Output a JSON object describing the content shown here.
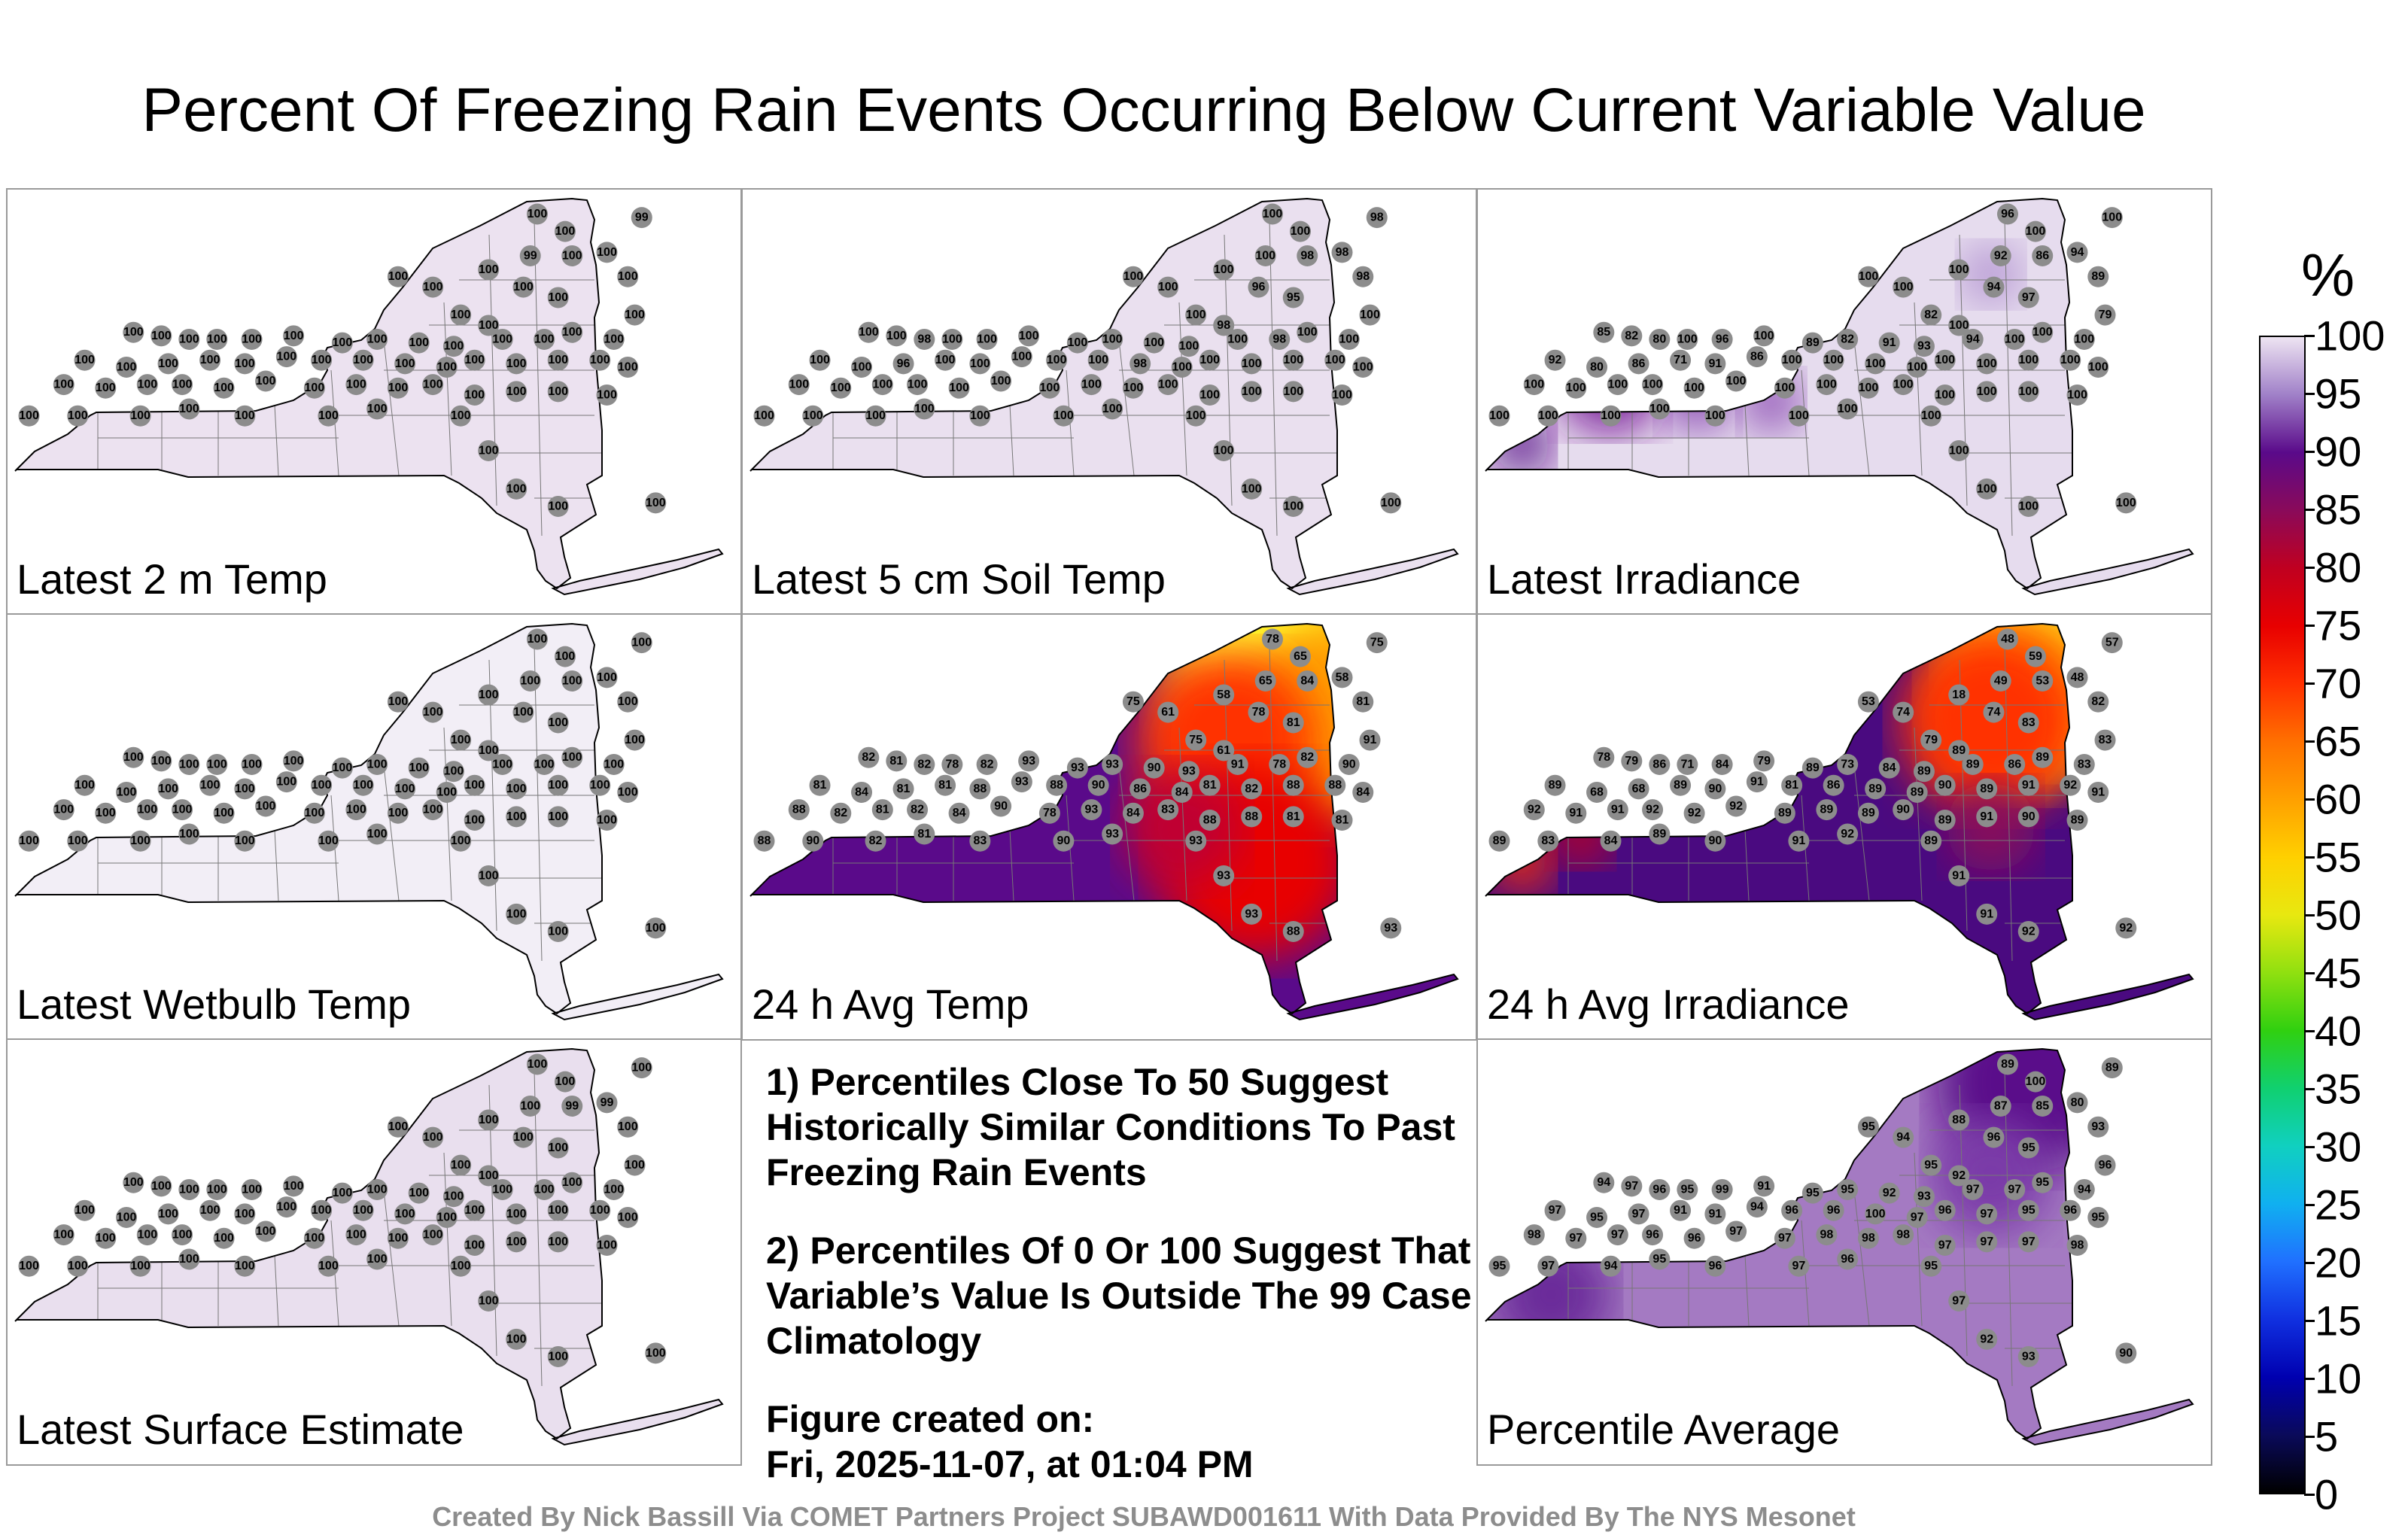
{
  "title": "Percent Of Freezing Rain Events Occurring Below Current Variable Value",
  "panels": [
    {
      "label": "Latest 2 m Temp",
      "fill": "#ece2f0",
      "stations": [
        100,
        100,
        99,
        99,
        100,
        100,
        100,
        100,
        100,
        100,
        100,
        100,
        100,
        100,
        100,
        100,
        100,
        100,
        100,
        100,
        100,
        100,
        100,
        100,
        100,
        100,
        100,
        100,
        100,
        100,
        100,
        100,
        100,
        100,
        100,
        100,
        100,
        100,
        100,
        100,
        100,
        100,
        100,
        100,
        100,
        100,
        100,
        100,
        100,
        100,
        100,
        100,
        100,
        100,
        100,
        100,
        100,
        100,
        100,
        100,
        100,
        100,
        100,
        100,
        100,
        100,
        100,
        100,
        100,
        100
      ]
    },
    {
      "label": "Latest 5 cm Soil Temp",
      "fill": "#eae0ef",
      "stations": [
        100,
        100,
        98,
        100,
        98,
        98,
        100,
        98,
        100,
        100,
        96,
        95,
        100,
        98,
        100,
        100,
        98,
        100,
        100,
        100,
        100,
        100,
        100,
        100,
        100,
        98,
        100,
        100,
        100,
        100,
        100,
        96,
        100,
        100,
        100,
        100,
        100,
        98,
        100,
        100,
        100,
        100,
        100,
        100,
        100,
        100,
        100,
        100,
        100,
        100,
        100,
        100,
        100,
        100,
        100,
        100,
        100,
        100,
        100,
        100,
        100,
        100,
        100,
        100,
        100,
        100,
        100,
        100,
        100,
        100
      ]
    },
    {
      "label": "Latest Irradiance",
      "fill": "#e6dcee",
      "stations": [
        96,
        100,
        100,
        92,
        86,
        94,
        100,
        89,
        100,
        100,
        94,
        97,
        82,
        100,
        85,
        82,
        80,
        100,
        96,
        100,
        89,
        82,
        91,
        93,
        94,
        100,
        100,
        100,
        79,
        92,
        80,
        86,
        71,
        91,
        86,
        100,
        100,
        100,
        100,
        100,
        100,
        100,
        100,
        100,
        100,
        100,
        100,
        100,
        100,
        100,
        100,
        100,
        100,
        100,
        100,
        100,
        100,
        100,
        100,
        100,
        100,
        100,
        100,
        100,
        100,
        100,
        100,
        100,
        100,
        100
      ]
    },
    {
      "label": "Latest Wetbulb Temp",
      "fill": "#f2eef6",
      "stations": [
        100,
        100,
        100,
        100,
        100,
        100,
        100,
        100,
        100,
        100,
        100,
        100,
        100,
        100,
        100,
        100,
        100,
        100,
        100,
        100,
        100,
        100,
        100,
        100,
        100,
        100,
        100,
        100,
        100,
        100,
        100,
        100,
        100,
        100,
        100,
        100,
        100,
        100,
        100,
        100,
        100,
        100,
        100,
        100,
        100,
        100,
        100,
        100,
        100,
        100,
        100,
        100,
        100,
        100,
        100,
        100,
        100,
        100,
        100,
        100,
        100,
        100,
        100,
        100,
        100,
        100,
        100,
        100,
        100,
        100
      ]
    },
    {
      "label": "24 h Avg Temp",
      "fill": "#5a0a8a",
      "stations": [
        78,
        65,
        75,
        65,
        84,
        58,
        58,
        81,
        75,
        61,
        78,
        81,
        75,
        61,
        82,
        81,
        82,
        78,
        82,
        93,
        93,
        93,
        90,
        93,
        91,
        78,
        82,
        90,
        91,
        81,
        84,
        81,
        81,
        88,
        93,
        88,
        90,
        86,
        84,
        81,
        82,
        88,
        88,
        84,
        88,
        82,
        81,
        82,
        84,
        90,
        78,
        93,
        84,
        83,
        88,
        88,
        81,
        81,
        88,
        90,
        82,
        81,
        83,
        90,
        93,
        93,
        93,
        93,
        88,
        93
      ]
    },
    {
      "label": "24 h Avg Irradiance",
      "fill": "#4a0a80",
      "stations": [
        48,
        59,
        57,
        49,
        53,
        48,
        18,
        82,
        53,
        74,
        74,
        83,
        79,
        89,
        78,
        79,
        86,
        71,
        84,
        79,
        89,
        73,
        84,
        89,
        89,
        86,
        89,
        83,
        83,
        89,
        68,
        68,
        89,
        90,
        91,
        81,
        86,
        89,
        89,
        90,
        89,
        91,
        92,
        91,
        92,
        91,
        91,
        92,
        92,
        92,
        89,
        89,
        89,
        90,
        89,
        91,
        90,
        89,
        89,
        83,
        84,
        89,
        90,
        91,
        92,
        89,
        91,
        91,
        92,
        92
      ]
    },
    {
      "label": "Latest Surface Estimate",
      "fill": "#e9dfee",
      "stations": [
        100,
        100,
        100,
        100,
        99,
        99,
        100,
        100,
        100,
        100,
        100,
        100,
        100,
        100,
        100,
        100,
        100,
        100,
        100,
        100,
        100,
        100,
        100,
        100,
        100,
        100,
        100,
        100,
        100,
        100,
        100,
        100,
        100,
        100,
        100,
        100,
        100,
        100,
        100,
        100,
        100,
        100,
        100,
        100,
        100,
        100,
        100,
        100,
        100,
        100,
        100,
        100,
        100,
        100,
        100,
        100,
        100,
        100,
        100,
        100,
        100,
        100,
        100,
        100,
        100,
        100,
        100,
        100,
        100,
        100
      ]
    },
    {
      "label": "Percentile Average",
      "fill": "#a47ac2",
      "stations": [
        89,
        100,
        89,
        87,
        85,
        80,
        88,
        93,
        95,
        94,
        96,
        95,
        95,
        92,
        94,
        97,
        96,
        95,
        99,
        91,
        95,
        95,
        92,
        93,
        97,
        97,
        95,
        94,
        96,
        97,
        95,
        97,
        91,
        91,
        94,
        96,
        96,
        100,
        97,
        96,
        97,
        95,
        96,
        95,
        98,
        97,
        97,
        96,
        96,
        97,
        97,
        98,
        98,
        98,
        97,
        97,
        97,
        98,
        95,
        97,
        94,
        95,
        96,
        97,
        96,
        95,
        97,
        92,
        93,
        90
      ]
    }
  ],
  "notes": {
    "note1": "1) Percentiles Close To 50 Suggest Historically Similar Conditions To Past Freezing Rain Events",
    "note2": "2) Percentiles Of 0 Or 100 Suggest That Variable’s Value Is Outside The 99 Case Climatology",
    "created_label": "Figure created on:",
    "created_value": "Fri, 2025-11-07, at 01:04 PM"
  },
  "credit": "Created By Nick Bassill Via COMET Partners Project SUBAWD001611 With Data Provided By The NYS Mesonet",
  "colorbar": {
    "unit": "%",
    "ticks": [
      "0",
      "5",
      "10",
      "15",
      "20",
      "25",
      "30",
      "35",
      "40",
      "45",
      "50",
      "55",
      "60",
      "65",
      "70",
      "75",
      "80",
      "85",
      "90",
      "95",
      "100"
    ],
    "colors": [
      "#000000",
      "#0a0a5a",
      "#0000b0",
      "#1030e0",
      "#2070ff",
      "#10b0f0",
      "#10d0c0",
      "#10d070",
      "#30d010",
      "#90e010",
      "#e8e810",
      "#ffd000",
      "#ffa000",
      "#ff7000",
      "#ff3000",
      "#e80000",
      "#c00020",
      "#8a0a5a",
      "#5a0a8a",
      "#a080c8",
      "#eee4f2"
    ]
  }
}
